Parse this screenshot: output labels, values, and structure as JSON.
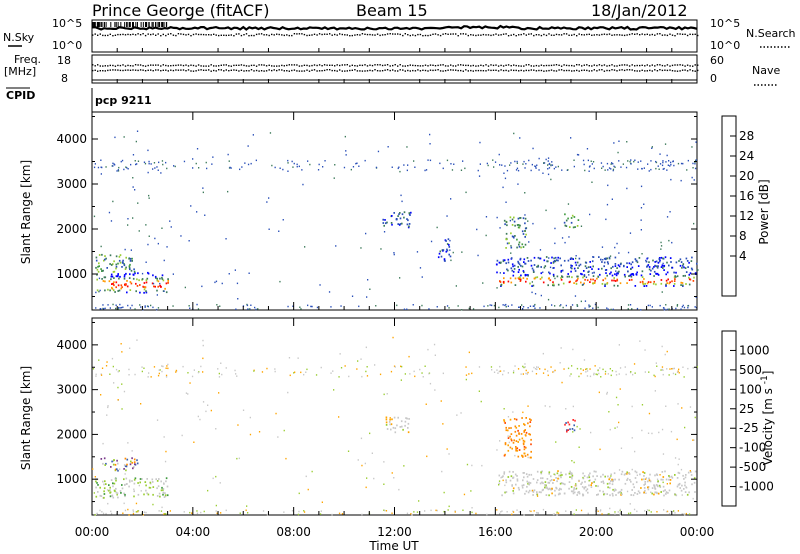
{
  "header": {
    "title": "Prince George (fitACF)",
    "beam": "Beam 15",
    "date": "18/Jan/2012"
  },
  "top_panels": {
    "nsky_label": "N.Sky",
    "nsearch_label": "N.Search",
    "nsky_ticks": [
      "10^5",
      "10^0"
    ],
    "nsearch_ticks": [
      "10^5",
      "10^0"
    ],
    "freq_label": "Freq.",
    "freq_unit": "[MHz]",
    "freq_ticks": [
      "18",
      "8"
    ],
    "nave_label": "Nave",
    "nave_ticks": [
      "60",
      "0"
    ],
    "cpid_label": "CPID",
    "cpid_value": "pcp 9211"
  },
  "chart_data": [
    {
      "type": "heatmap",
      "name": "power",
      "ylabel": "Slant Range [km]",
      "ylim": [
        200,
        4600
      ],
      "yticks": [
        "4000",
        "3000",
        "2000",
        "1000"
      ],
      "xlim": [
        0,
        24
      ],
      "colorbar": {
        "label": "Power [dB]",
        "ticks": [
          "28",
          "24",
          "20",
          "16",
          "12",
          "8",
          "4"
        ],
        "colors": [
          "#0000ff",
          "#2a4fb8",
          "#3d7a5a",
          "#3f9a3f",
          "#9acd32",
          "#f5d300",
          "#ff9900",
          "#ff4500",
          "#ff0000"
        ]
      },
      "regions": [
        {
          "t0": 0.1,
          "t1": 3.0,
          "r0": 600,
          "r1": 1050,
          "level": "high"
        },
        {
          "t0": 0.1,
          "t1": 1.8,
          "r0": 1050,
          "r1": 1450,
          "level": "mid"
        },
        {
          "t0": 16.1,
          "t1": 24.0,
          "r0": 750,
          "r1": 1050,
          "level": "high"
        },
        {
          "t0": 16.0,
          "t1": 24.0,
          "r0": 1050,
          "r1": 1400,
          "level": "low"
        },
        {
          "t0": 16.3,
          "t1": 17.2,
          "r0": 1600,
          "r1": 2300,
          "level": "mid"
        },
        {
          "t0": 18.7,
          "t1": 19.3,
          "r0": 2050,
          "r1": 2350,
          "level": "mid"
        },
        {
          "t0": 11.5,
          "t1": 12.7,
          "r0": 2050,
          "r1": 2400,
          "level": "low"
        },
        {
          "t0": 13.7,
          "t1": 14.2,
          "r0": 1300,
          "r1": 1800,
          "level": "low"
        }
      ]
    },
    {
      "type": "heatmap",
      "name": "velocity",
      "ylabel": "Slant Range [km]",
      "ylim": [
        200,
        4600
      ],
      "yticks": [
        "4000",
        "3000",
        "2000",
        "1000"
      ],
      "xlim": [
        0,
        24
      ],
      "xticks": [
        "00:00",
        "04:00",
        "08:00",
        "12:00",
        "16:00",
        "20:00",
        "00:00"
      ],
      "xlabel": "Time UT",
      "colorbar": {
        "label": "Velocity [m s^-1]",
        "ticks": [
          "1000",
          "500",
          "100",
          "25",
          "-25",
          "-100",
          "-500",
          "-1000"
        ],
        "colors": [
          "#ff0000",
          "#ff4500",
          "#ff8c00",
          "#ffa500",
          "#c8c8c8",
          "#9acd32",
          "#3f9a3f",
          "#3a60b0",
          "#0000ff"
        ]
      },
      "regions": [
        {
          "t0": 0.1,
          "t1": 3.0,
          "r0": 600,
          "r1": 1050,
          "level": "green-grey"
        },
        {
          "t0": 0.3,
          "t1": 1.8,
          "r0": 1200,
          "r1": 1500,
          "level": "mixed"
        },
        {
          "t0": 16.1,
          "t1": 24.0,
          "r0": 650,
          "r1": 1200,
          "level": "grey"
        },
        {
          "t0": 16.3,
          "t1": 17.4,
          "r0": 1500,
          "r1": 2400,
          "level": "orange"
        },
        {
          "t0": 18.7,
          "t1": 19.2,
          "r0": 2050,
          "r1": 2350,
          "level": "red"
        },
        {
          "t0": 11.6,
          "t1": 12.6,
          "r0": 2050,
          "r1": 2400,
          "level": "grey"
        }
      ]
    }
  ]
}
